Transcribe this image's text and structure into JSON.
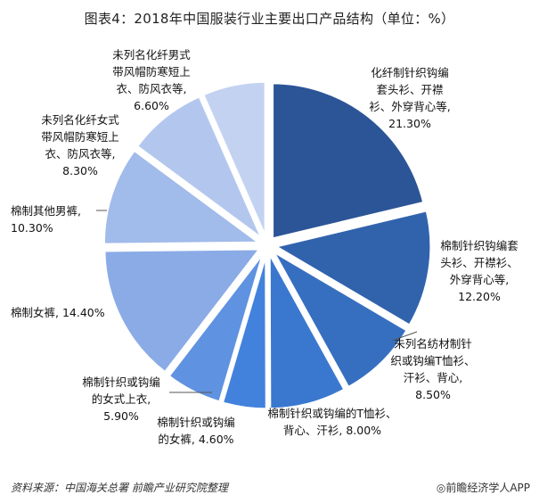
{
  "title": "图表4：2018年中国服装行业主要出口产品结构（单位：%）",
  "chart_data": {
    "type": "pie",
    "title": "图表4：2018年中国服装行业主要出口产品结构（单位：%）",
    "unit": "%",
    "slices": [
      {
        "label_lines": [
          "化纤制针织钩编",
          "套头衫、开襟",
          "衫、外穿背心等,",
          "21.30%"
        ],
        "value": 21.3,
        "color": "#2c5597"
      },
      {
        "label_lines": [
          "棉制针织钩编套",
          "头衫、开襟衫、",
          "外穿背心等,",
          "12.20%"
        ],
        "value": 12.2,
        "color": "#3163ad"
      },
      {
        "label_lines": [
          "未列名纺材制针",
          "织或钩编T恤衫、",
          "汗衫、背心,",
          "8.50%"
        ],
        "value": 8.5,
        "color": "#366fc0"
      },
      {
        "label_lines": [
          "棉制针织或钩编的T恤衫、",
          "背心、汗衫, 8.00%"
        ],
        "value": 8.0,
        "color": "#3a78d0"
      },
      {
        "label_lines": [
          "棉制针织或钩编",
          "的女裤, 4.60%"
        ],
        "value": 4.6,
        "color": "#4282dc"
      },
      {
        "label_lines": [
          "棉制针织或钩编",
          "的女式上衣,",
          "5.90%"
        ],
        "value": 5.9,
        "color": "#5f92e0"
      },
      {
        "label_lines": [
          "棉制女裤, 14.40%"
        ],
        "value": 14.4,
        "color": "#8aabe6"
      },
      {
        "label_lines": [
          "棉制其他男裤,",
          "10.30%"
        ],
        "value": 10.3,
        "color": "#a1bbea"
      },
      {
        "label_lines": [
          "未列名化纤女式",
          "带风帽防寒短上",
          "衣、防风衣等,",
          "8.30%"
        ],
        "value": 8.3,
        "color": "#b3c7ee"
      },
      {
        "label_lines": [
          "未列名化纤男式",
          "带风帽防寒短上",
          "衣、防风衣等,",
          "6.60%"
        ],
        "value": 6.6,
        "color": "#c3d2f1"
      }
    ]
  },
  "footer": {
    "source": "资料来源：中国海关总署 前瞻产业研究院整理",
    "brand": "◎前瞻经济学人APP"
  }
}
